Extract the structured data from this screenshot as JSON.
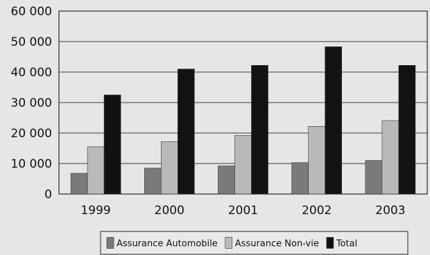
{
  "chart_data": {
    "type": "bar",
    "categories": [
      "1999",
      "2000",
      "2001",
      "2002",
      "2003"
    ],
    "series": [
      {
        "name": "Assurance Automobile",
        "values": [
          6800,
          8500,
          9200,
          10300,
          11000
        ],
        "color": "#7a7a7a"
      },
      {
        "name": "Assurance Non-vie",
        "values": [
          15500,
          17200,
          19200,
          22200,
          24100
        ],
        "color": "#b9b9b9"
      },
      {
        "name": "Total",
        "values": [
          32500,
          41000,
          42200,
          48300,
          42200
        ],
        "color": "#121212"
      }
    ],
    "ylim": [
      0,
      60000
    ],
    "yticks": [
      0,
      10000,
      20000,
      30000,
      40000,
      50000,
      60000
    ],
    "ytick_labels": [
      "0",
      "10 000",
      "20 000",
      "30 000",
      "40 000",
      "50 000",
      "60 000"
    ],
    "grid": true,
    "legend_position": "bottom",
    "title": "",
    "xlabel": "",
    "ylabel": ""
  }
}
